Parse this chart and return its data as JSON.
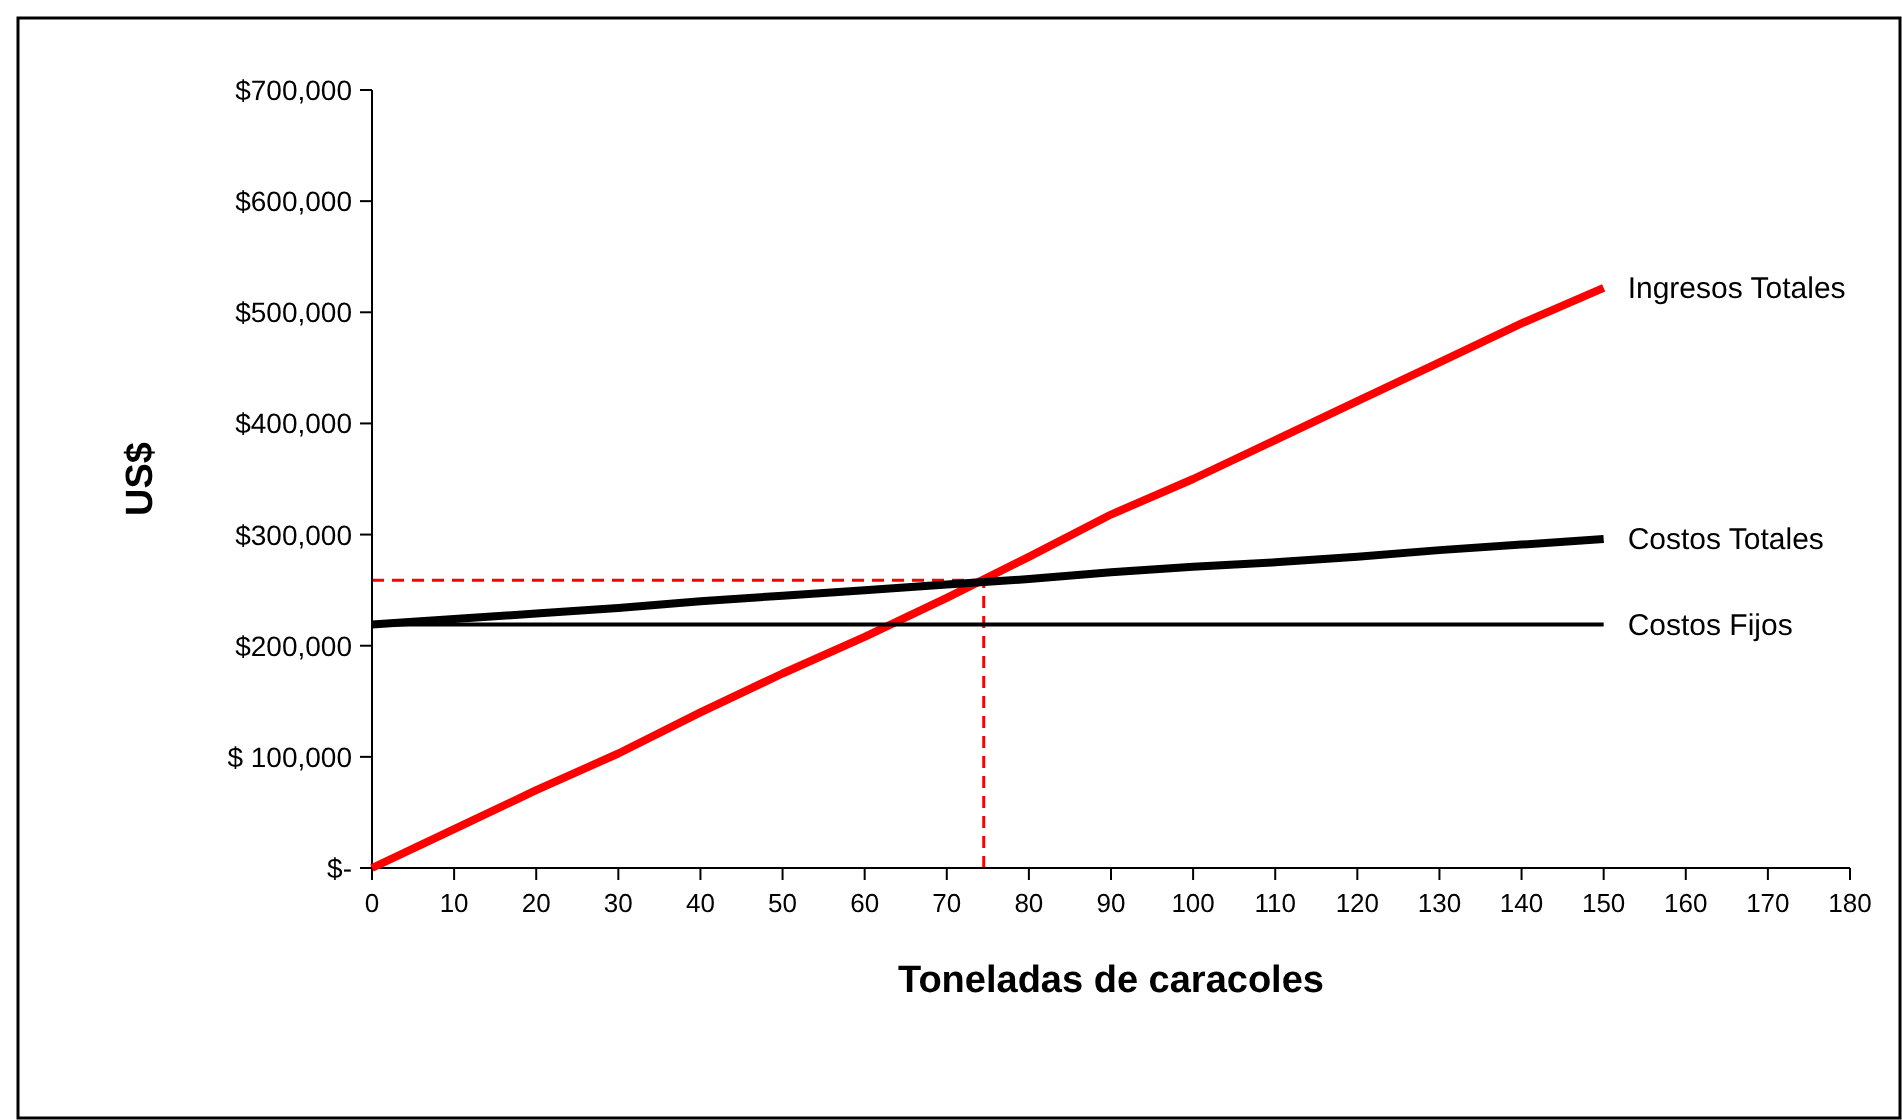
{
  "chart_data": {
    "type": "line",
    "xlabel": "Toneladas de caracoles",
    "ylabel": "US$",
    "xlim": [
      0,
      180
    ],
    "xticks": [
      0,
      10,
      20,
      30,
      40,
      50,
      60,
      70,
      80,
      90,
      100,
      110,
      120,
      130,
      140,
      150,
      160,
      170,
      180
    ],
    "ylim": [
      0,
      700000
    ],
    "yticks": [
      {
        "value": 0,
        "label": "$-"
      },
      {
        "value": 100000,
        "label": "$ 100,000"
      },
      {
        "value": 200000,
        "label": "$200,000"
      },
      {
        "value": 300000,
        "label": "$300,000"
      },
      {
        "value": 400000,
        "label": "$400,000"
      },
      {
        "value": 500000,
        "label": "$500,000"
      },
      {
        "value": 600000,
        "label": "$600,000"
      },
      {
        "value": 700000,
        "label": "$700,000"
      }
    ],
    "grid": false,
    "marker": "none",
    "line_style": "solid",
    "series": [
      {
        "name": "Ingresos Totales",
        "color": "#ff0000",
        "x": [
          0,
          10,
          20,
          30,
          40,
          50,
          60,
          70,
          80,
          90,
          100,
          110,
          120,
          130,
          140,
          150
        ],
        "values": [
          0,
          35000,
          70000,
          103000,
          140000,
          175000,
          208000,
          243000,
          280000,
          318000,
          350000,
          385000,
          420000,
          455000,
          490000,
          522000
        ]
      },
      {
        "name": "Costos Totales",
        "color": "#000000",
        "x": [
          0,
          10,
          20,
          30,
          40,
          50,
          60,
          70,
          80,
          90,
          100,
          110,
          120,
          130,
          140,
          150
        ],
        "values": [
          219000,
          224000,
          229000,
          234000,
          240000,
          245000,
          250000,
          255000,
          260000,
          266000,
          271000,
          275000,
          280000,
          286000,
          291000,
          296000
        ]
      },
      {
        "name": "Costos Fijos",
        "color": "#000000",
        "x": [
          0,
          150
        ],
        "values": [
          219000,
          219000
        ]
      }
    ],
    "ref_lines": [
      {
        "axis": "x",
        "value": 74.5,
        "color": "#ff0000",
        "line_style": "dashed"
      },
      {
        "axis": "y",
        "value": 259000,
        "color": "#ff0000",
        "line_style": "dashed"
      }
    ]
  }
}
